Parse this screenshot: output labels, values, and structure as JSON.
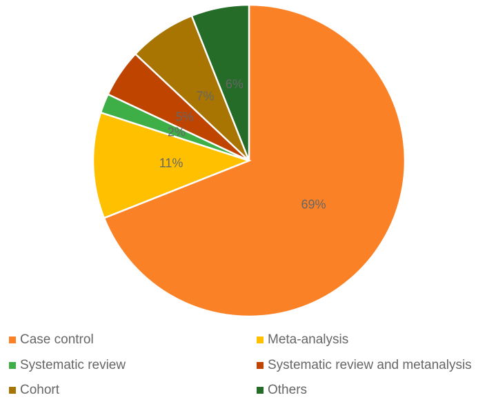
{
  "chart_data": {
    "type": "pie",
    "title": "",
    "start_angle": "top",
    "direction": "clockwise",
    "legend_position": "bottom",
    "slices": [
      {
        "label": "Case control",
        "value": 69,
        "display": "69%",
        "color": "#FB8126"
      },
      {
        "label": "Meta-analysis",
        "value": 11,
        "display": "11%",
        "color": "#FFC000"
      },
      {
        "label": "Systematic review",
        "value": 2,
        "display": "2%",
        "color": "#3DAF46"
      },
      {
        "label": "Systematic review and metanalysis",
        "value": 5,
        "display": "5%",
        "color": "#BF4400"
      },
      {
        "label": "Cohort",
        "value": 7,
        "display": "7%",
        "color": "#A87402"
      },
      {
        "label": "Others",
        "value": 6,
        "display": "6%",
        "color": "#246C27"
      }
    ]
  }
}
